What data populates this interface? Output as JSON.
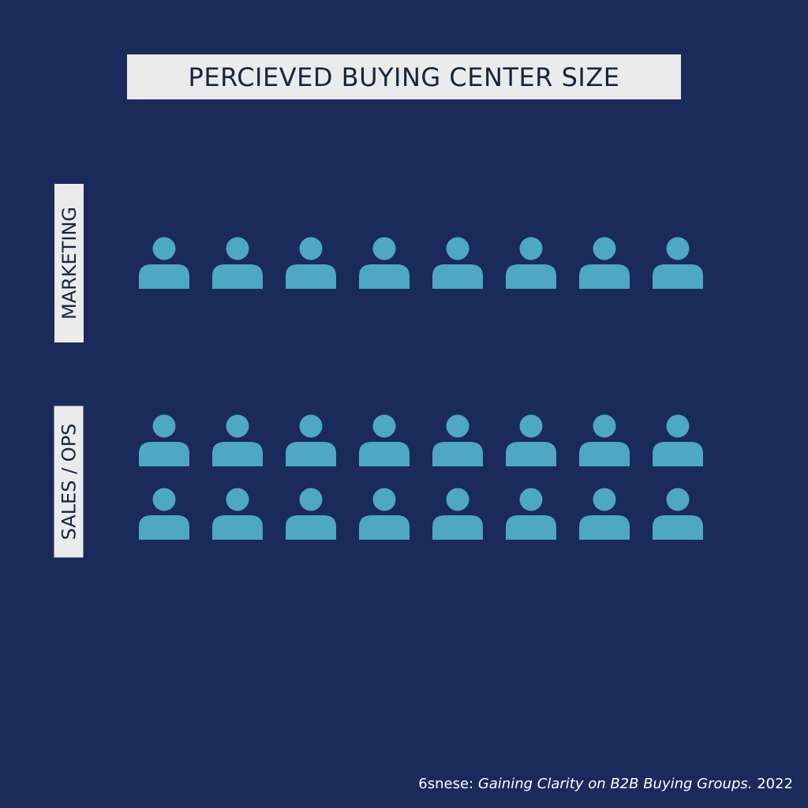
{
  "title": "PERCIEVED BUYING CENTER SIZE",
  "source": {
    "prefix": "6snese: ",
    "publication": "Gaining Clarity on B2B Buying Groups.",
    "year": " 2022"
  },
  "colors": {
    "background": "#1a2a5a",
    "label_box": "#ebebeb",
    "label_text": "#17253f",
    "icon": "#4ea7c3"
  },
  "icon": "person-icon",
  "chart_data": {
    "type": "pictogram",
    "title": "PERCIEVED BUYING CENTER SIZE",
    "series": [
      {
        "name": "MARKETING",
        "value": 8
      },
      {
        "name": "SALES / OPS",
        "value": 16
      }
    ]
  }
}
